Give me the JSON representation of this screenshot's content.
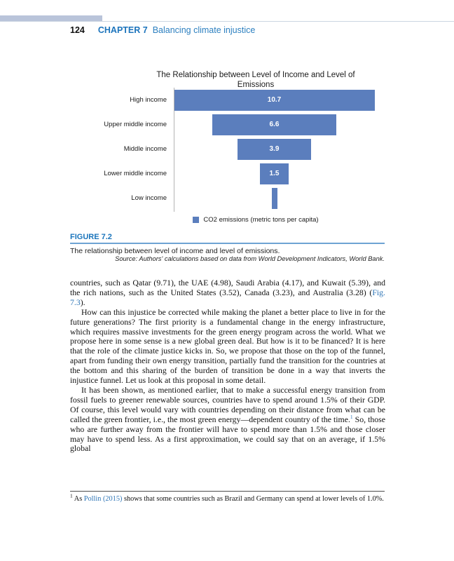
{
  "header": {
    "page_number": "124",
    "chapter_label": "CHAPTER 7",
    "chapter_title": "Balancing climate injustice"
  },
  "chart_data": {
    "type": "bar",
    "orientation": "horizontal-centered-funnel",
    "title": "The Relationship between Level of Income and Level of Emissions",
    "title_lines": [
      "The Relationship between Level of Income and Level of",
      "Emissions"
    ],
    "categories": [
      "High income",
      "Upper middle income",
      "Middle income",
      "Lower middle income",
      "Low income"
    ],
    "values": [
      10.7,
      6.6,
      3.9,
      1.5,
      0.3
    ],
    "data_labels": [
      "10.7",
      "6.6",
      "3.9",
      "1.5",
      ""
    ],
    "legend_label": "CO2 emissions (metric tons per capita)",
    "legend_position": "bottom-center",
    "bar_color": "#5b7ebd",
    "xmax": 10.7,
    "grid": false
  },
  "figure": {
    "label": "FIGURE 7.2",
    "caption": "The relationship between level of income and level of emissions.",
    "source": "Source: Authors' calculations based on data from World Development Indicators, World Bank."
  },
  "body": {
    "paragraphs": [
      {
        "indent": false,
        "segments": [
          {
            "t": "countries, such as Qatar (9.71), the UAE (4.98), Saudi Arabia (4.17), and Kuwait (5.39), and the rich nations, such as the United States (3.52), Canada (3.23), and Australia (3.28) ("
          },
          {
            "t": "Fig. 7.3",
            "s": "link"
          },
          {
            "t": ")."
          }
        ]
      },
      {
        "indent": true,
        "segments": [
          {
            "t": "How can this injustice be corrected while making the planet a better place to live in for the future generations? The first priority is a fundamental change in the energy infrastructure, which requires massive investments for the green energy program across the world. What we propose here in some sense is a new global green deal. But how is it to be financed? It is here that the role of the climate justice kicks in. So, we propose that those on the top of the funnel, apart from funding their own energy transition, partially fund the transition for the countries at the bottom and this sharing of the burden of transition be done in a way that inverts the injustice funnel. Let us look at this proposal in some detail."
          }
        ]
      },
      {
        "indent": true,
        "segments": [
          {
            "t": "It has been shown, as mentioned earlier, that to make a successful energy transition from fossil fuels to greener renewable sources, countries have to spend around 1.5% of their GDP. Of course, this level would vary with countries depending on their distance from what can be called the green frontier, i.e., the most green energy—dependent country of the time."
          },
          {
            "t": "1",
            "s": "sup"
          },
          {
            "t": " So, those who are further away from the frontier will have to spend more than 1.5% and those closer may have to spend less. As a first approximation, we could say that on an average, if 1.5% global"
          }
        ]
      }
    ]
  },
  "footnote": {
    "segments": [
      {
        "t": "1",
        "s": "mark"
      },
      {
        "t": " As "
      },
      {
        "t": "Pollin (2015)",
        "s": "link"
      },
      {
        "t": " shows that some countries such as Brazil and Germany can spend at lower levels of 1.0%."
      }
    ]
  },
  "colors": {
    "accent_blue": "#1c74bc",
    "chapter_title_blue": "#2d80c0",
    "bar_blue": "#5b7ebd",
    "figure_blue": "#1b75bc",
    "link_blue": "#2e75b6",
    "deco_bar": "#b9c4da"
  }
}
